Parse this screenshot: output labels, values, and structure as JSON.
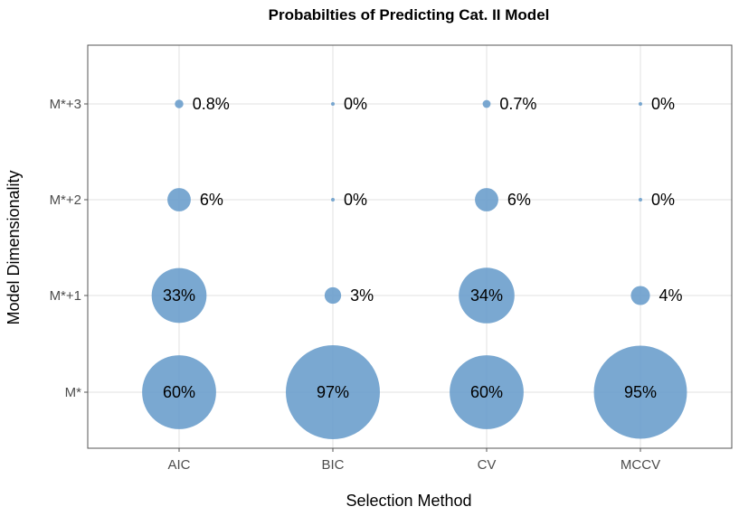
{
  "chart_data": {
    "type": "scatter",
    "title": "Probabilties of Predicting Cat. II Model",
    "xlabel": "Selection Method",
    "ylabel": "Model Dimensionality",
    "categories_x": [
      "AIC",
      "BIC",
      "CV",
      "MCCV"
    ],
    "categories_y": [
      "M*",
      "M*+1",
      "M*+2",
      "M*+3"
    ],
    "grid": true,
    "legend": "none",
    "point_color": "#6b9fcc",
    "points": [
      {
        "x": "AIC",
        "y": "M*+3",
        "value": 0.8,
        "label": "0.8%"
      },
      {
        "x": "BIC",
        "y": "M*+3",
        "value": 0,
        "label": "0%"
      },
      {
        "x": "CV",
        "y": "M*+3",
        "value": 0.7,
        "label": "0.7%"
      },
      {
        "x": "MCCV",
        "y": "M*+3",
        "value": 0,
        "label": "0%"
      },
      {
        "x": "AIC",
        "y": "M*+2",
        "value": 6,
        "label": "6%"
      },
      {
        "x": "BIC",
        "y": "M*+2",
        "value": 0,
        "label": "0%"
      },
      {
        "x": "CV",
        "y": "M*+2",
        "value": 6,
        "label": "6%"
      },
      {
        "x": "MCCV",
        "y": "M*+2",
        "value": 0,
        "label": "0%"
      },
      {
        "x": "AIC",
        "y": "M*+1",
        "value": 33,
        "label": "33%"
      },
      {
        "x": "BIC",
        "y": "M*+1",
        "value": 3,
        "label": "3%"
      },
      {
        "x": "CV",
        "y": "M*+1",
        "value": 34,
        "label": "34%"
      },
      {
        "x": "MCCV",
        "y": "M*+1",
        "value": 4,
        "label": "4%"
      },
      {
        "x": "AIC",
        "y": "M*",
        "value": 60,
        "label": "60%"
      },
      {
        "x": "BIC",
        "y": "M*",
        "value": 97,
        "label": "97%"
      },
      {
        "x": "CV",
        "y": "M*",
        "value": 60,
        "label": "60%"
      },
      {
        "x": "MCCV",
        "y": "M*",
        "value": 95,
        "label": "95%"
      }
    ]
  }
}
